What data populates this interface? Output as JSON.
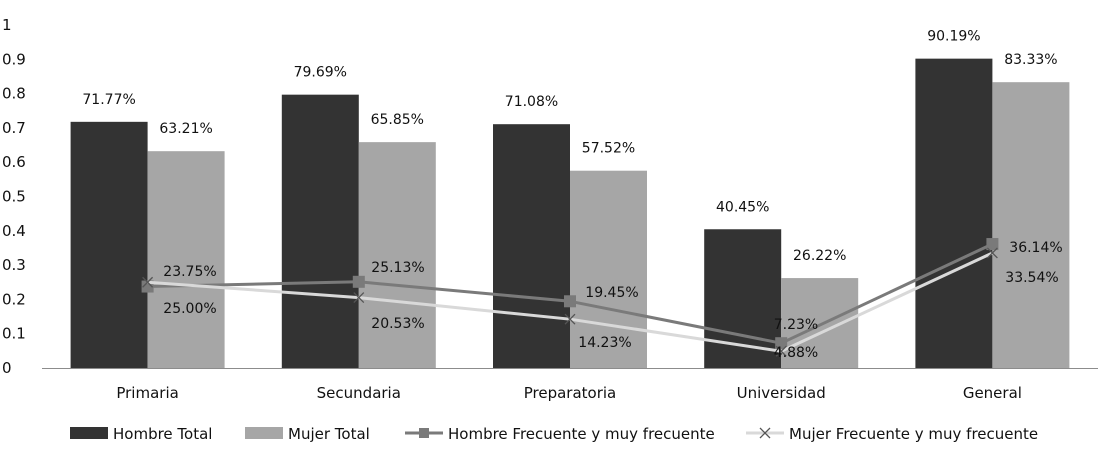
{
  "chart_data": {
    "type": "bar",
    "categories": [
      "Primaria",
      "Secundaria",
      "Preparatoria",
      "Universidad",
      "General"
    ],
    "ylim": [
      0,
      1
    ],
    "yticks": [
      "0",
      "0.1",
      "0.2",
      "0.3",
      "0.4",
      "0.5",
      "0.6",
      "0.7",
      "0.8",
      "0.9",
      "1"
    ],
    "grid": false,
    "legend_position": "bottom",
    "series": [
      {
        "name": "Hombre Total",
        "type": "bar",
        "color": "#333333",
        "values": [
          0.7177,
          0.7969,
          0.7108,
          0.4045,
          0.9019
        ],
        "labels": [
          "71.77%",
          "79.69%",
          "71.08%",
          "40.45%",
          "90.19%"
        ]
      },
      {
        "name": "Mujer Total",
        "type": "bar",
        "color": "#a6a6a6",
        "values": [
          0.6321,
          0.6585,
          0.5752,
          0.2622,
          0.8333
        ],
        "labels": [
          "63.21%",
          "65.85%",
          "57.52%",
          "26.22%",
          "83.33%"
        ]
      },
      {
        "name": "Hombre Frecuente y muy frecuente",
        "type": "line",
        "marker": "square",
        "color": "#7a7a7a",
        "values": [
          0.2375,
          0.2513,
          0.1945,
          0.0723,
          0.3614
        ],
        "labels": [
          "23.75%",
          "25.13%",
          "19.45%",
          "7.23%",
          "36.14%"
        ]
      },
      {
        "name": "Mujer Frecuente y muy frecuente",
        "type": "line",
        "marker": "x",
        "color": "#d9d9d9",
        "values": [
          0.25,
          0.2053,
          0.1423,
          0.0488,
          0.3354
        ],
        "labels": [
          "25.00%",
          "20.53%",
          "14.23%",
          "4.88%",
          "33.54%"
        ]
      }
    ]
  }
}
